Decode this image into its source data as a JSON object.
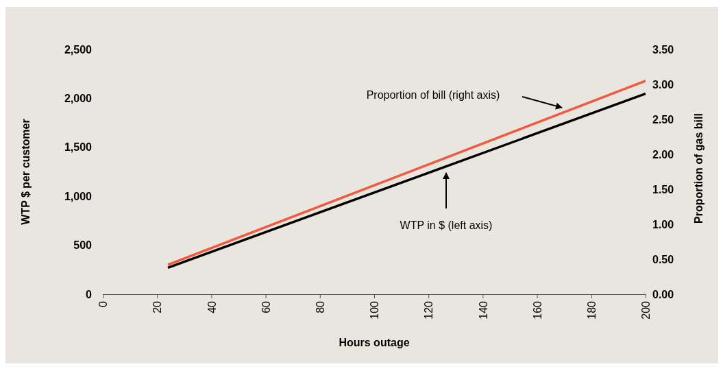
{
  "chart_data": {
    "type": "line",
    "xlabel": "Hours outage",
    "ylabel": "WTP $ per customer",
    "y2label": "Proportion of gas bill",
    "x": [
      24,
      200
    ],
    "series": [
      {
        "color": "#000000",
        "values": [
          270,
          2047
        ]
      },
      {
        "color": "#f05a40",
        "values": [
          0.42,
          3.05
        ],
        "axis": "y2"
      }
    ],
    "xlim": [
      0,
      200
    ],
    "xticks": [
      0,
      20,
      40,
      60,
      80,
      100,
      120,
      140,
      160,
      180,
      200
    ],
    "ylim": [
      0,
      2500
    ],
    "yticks": [
      0,
      {
        "value": 500,
        "label": "500"
      },
      {
        "value": 1000,
        "label": "1,000"
      },
      {
        "value": 1500,
        "label": "1,500"
      },
      {
        "value": 2000,
        "label": "2,000"
      },
      {
        "value": 2500,
        "label": "2,500"
      }
    ],
    "y2lim": [
      0,
      3.5
    ],
    "y2ticks": [
      {
        "value": 0,
        "label": "0.00"
      },
      {
        "value": 0.5,
        "label": "0.50"
      },
      {
        "value": 1,
        "label": "1.00"
      },
      {
        "value": 1.5,
        "label": "1.50"
      },
      {
        "value": 2,
        "label": "2.00"
      },
      {
        "value": 2.5,
        "label": "2.50"
      },
      {
        "value": 3,
        "label": "3.00"
      },
      {
        "value": 3.5,
        "label": "3.50"
      }
    ],
    "annotations": [
      "Proportion of bill (right axis)",
      "WTP in $ (left axis)"
    ],
    "grid": false,
    "marker": "none",
    "line_style": "solid"
  }
}
